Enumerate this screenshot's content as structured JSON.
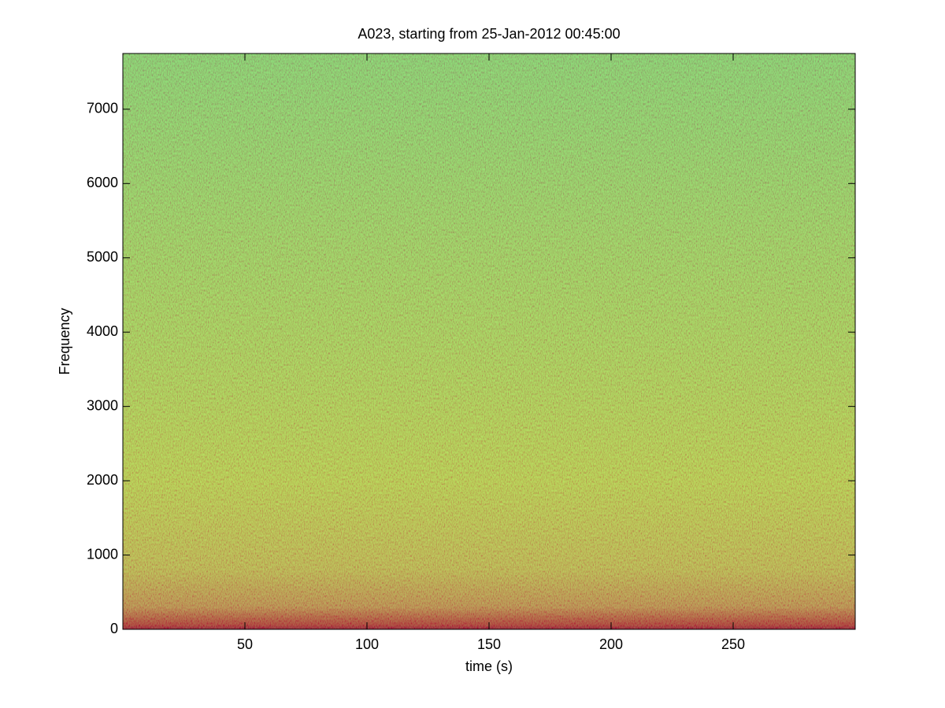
{
  "chart_data": {
    "type": "spectrogram",
    "title": "A023, starting from 25-Jan-2012 00:45:00",
    "x_label": "time (s)",
    "y_label": "Frequency",
    "xlim": [
      0,
      300
    ],
    "xticks": [
      50,
      100,
      150,
      200,
      250
    ],
    "ylim": [
      0,
      7750
    ],
    "yticks": [
      0,
      1000,
      2000,
      3000,
      4000,
      5000,
      6000,
      7000
    ],
    "color_stops": [
      {
        "y": 0,
        "color": "#c00000"
      },
      {
        "y": 60,
        "color": "#e03000"
      },
      {
        "y": 300,
        "color": "#f09a1e"
      },
      {
        "y": 800,
        "color": "#f2cf22"
      },
      {
        "y": 2000,
        "color": "#eced22"
      },
      {
        "y": 4000,
        "color": "#d4f032"
      },
      {
        "y": 7750,
        "color": "#aaf04e"
      }
    ]
  }
}
